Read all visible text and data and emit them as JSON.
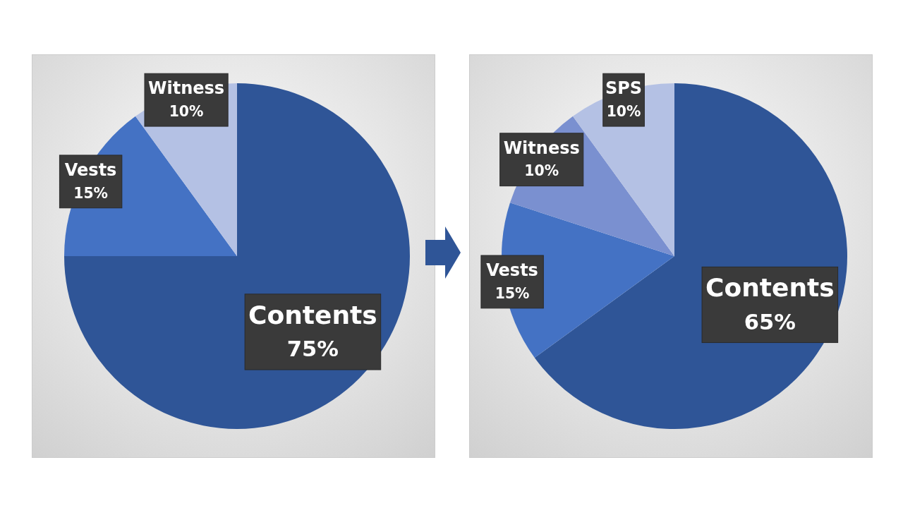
{
  "chart_data": [
    {
      "type": "pie",
      "categories": [
        "Contents",
        "Vests",
        "Witness"
      ],
      "values": [
        75,
        15,
        10
      ],
      "value_labels": [
        "75%",
        "15%",
        "10%"
      ],
      "colors": [
        "#2f5597",
        "#4472c4",
        "#b4c1e4"
      ]
    },
    {
      "type": "pie",
      "categories": [
        "Contents",
        "Vests",
        "Witness",
        "SPS"
      ],
      "values": [
        65,
        15,
        10,
        10
      ],
      "value_labels": [
        "65%",
        "15%",
        "10%",
        "10%"
      ],
      "colors": [
        "#2f5597",
        "#4472c4",
        "#7a90d0",
        "#b4c1e4"
      ]
    }
  ]
}
